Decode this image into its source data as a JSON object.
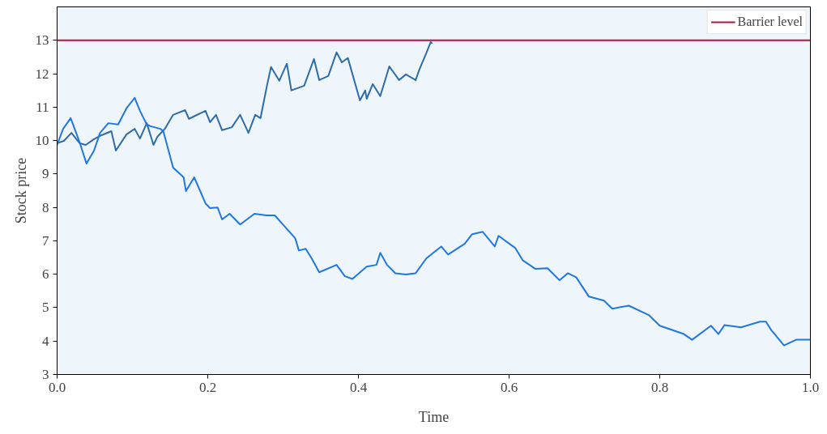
{
  "chart_data": {
    "type": "line",
    "xlabel": "Time",
    "ylabel": "Stock price",
    "xlim": [
      0,
      1
    ],
    "ylim": [
      3,
      14
    ],
    "xticks": [
      {
        "value": 0,
        "label": "0.0"
      },
      {
        "value": 0.2,
        "label": "0.2"
      },
      {
        "value": 0.4,
        "label": "0.4"
      },
      {
        "value": 0.6,
        "label": "0.6"
      },
      {
        "value": 0.8,
        "label": "0.8"
      },
      {
        "value": 1,
        "label": "1.0"
      }
    ],
    "yticks": [
      3,
      4,
      5,
      6,
      7,
      8,
      9,
      10,
      11,
      12,
      13
    ],
    "grid": false,
    "legend": "top right",
    "line_style": "solid",
    "marker": "none",
    "series": [
      {
        "color": "#2d6ca8",
        "x": [
          0,
          0.009,
          0.019,
          0.03,
          0.038,
          0.049,
          0.059,
          0.072,
          0.078,
          0.092,
          0.103,
          0.11,
          0.119,
          0.128,
          0.133,
          0.143,
          0.154,
          0.17,
          0.175,
          0.197,
          0.203,
          0.211,
          0.219,
          0.232,
          0.243,
          0.254,
          0.263,
          0.27,
          0.279,
          0.284,
          0.295,
          0.305,
          0.311,
          0.328,
          0.341,
          0.348,
          0.36,
          0.371,
          0.378,
          0.386,
          0.402,
          0.409,
          0.411,
          0.419,
          0.429,
          0.441,
          0.454,
          0.463,
          0.476,
          0.481,
          0.49,
          0.496,
          0.498
        ],
        "values": [
          9.92,
          9.99,
          10.23,
          9.92,
          9.87,
          10.04,
          10.16,
          10.28,
          9.7,
          10.18,
          10.35,
          10.06,
          10.52,
          9.87,
          10.11,
          10.35,
          10.77,
          10.91,
          10.65,
          10.89,
          10.55,
          10.77,
          10.31,
          10.4,
          10.77,
          10.23,
          10.77,
          10.67,
          11.69,
          12.2,
          11.79,
          12.3,
          11.5,
          11.64,
          12.44,
          11.81,
          11.93,
          12.64,
          12.34,
          12.47,
          11.2,
          11.5,
          11.25,
          11.69,
          11.33,
          12.22,
          11.81,
          11.98,
          11.81,
          12.13,
          12.61,
          12.95,
          12.9
        ]
      },
      {
        "color": "#1f77e0",
        "x": [
          0,
          0.008,
          0.018,
          0.024,
          0.03,
          0.039,
          0.049,
          0.057,
          0.068,
          0.081,
          0.092,
          0.103,
          0.11,
          0.119,
          0.124,
          0.137,
          0.141,
          0.154,
          0.168,
          0.171,
          0.182,
          0.197,
          0.203,
          0.213,
          0.219,
          0.229,
          0.243,
          0.262,
          0.278,
          0.289,
          0.297,
          0.316,
          0.321,
          0.33,
          0.338,
          0.348,
          0.371,
          0.382,
          0.392,
          0.411,
          0.424,
          0.429,
          0.438,
          0.449,
          0.463,
          0.476,
          0.49,
          0.501,
          0.51,
          0.519,
          0.541,
          0.551,
          0.565,
          0.581,
          0.586,
          0.608,
          0.618,
          0.635,
          0.651,
          0.667,
          0.678,
          0.689,
          0.706,
          0.726,
          0.737,
          0.759,
          0.786,
          0.8,
          0.832,
          0.843,
          0.868,
          0.878,
          0.886,
          0.908,
          0.933,
          0.941,
          0.948,
          0.965,
          0.981,
          1.0
        ],
        "values": [
          9.87,
          10.35,
          10.67,
          10.31,
          9.94,
          9.31,
          9.7,
          10.23,
          10.52,
          10.48,
          10.96,
          11.28,
          10.89,
          10.48,
          10.43,
          10.35,
          10.28,
          9.19,
          8.9,
          8.49,
          8.9,
          8.12,
          7.98,
          8.0,
          7.64,
          7.81,
          7.49,
          7.81,
          7.76,
          7.76,
          7.56,
          7.08,
          6.71,
          6.76,
          6.47,
          6.06,
          6.28,
          5.94,
          5.86,
          6.23,
          6.28,
          6.64,
          6.28,
          6.03,
          5.99,
          6.03,
          6.47,
          6.67,
          6.83,
          6.59,
          6.91,
          7.2,
          7.27,
          6.83,
          7.15,
          6.79,
          6.42,
          6.16,
          6.18,
          5.82,
          6.03,
          5.91,
          5.33,
          5.21,
          4.97,
          5.06,
          4.77,
          4.46,
          4.21,
          4.04,
          4.46,
          4.21,
          4.48,
          4.41,
          4.58,
          4.58,
          4.33,
          3.87,
          4.04,
          4.04
        ]
      }
    ],
    "ref_lines": [
      {
        "axis": "y",
        "value": 13,
        "label": "Barrier level",
        "color": "#b5123e",
        "line_style": "solid"
      }
    ]
  }
}
